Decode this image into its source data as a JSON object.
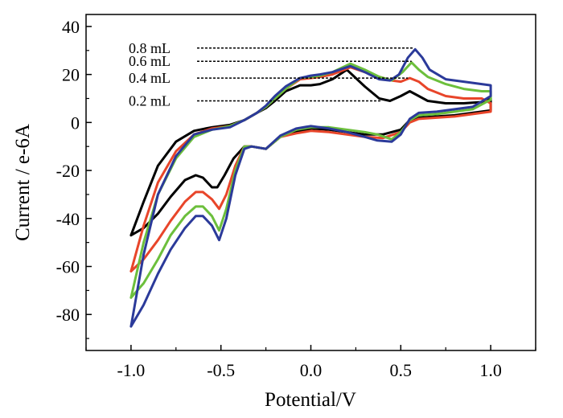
{
  "chart_data": {
    "type": "line",
    "xlabel": "Potential/V",
    "ylabel": "Current / e-6A",
    "xlim": [
      -1.25,
      1.25
    ],
    "ylim": [
      -95,
      45
    ],
    "xticks": [
      -1.0,
      -0.5,
      0.0,
      0.5,
      1.0
    ],
    "xtick_labels": [
      "-1.0",
      "-0.5",
      "0.0",
      "0.5",
      "1.0"
    ],
    "yticks": [
      -80,
      -60,
      -40,
      -20,
      0,
      20,
      40
    ],
    "ytick_labels": [
      "-80",
      "-60",
      "-40",
      "-20",
      "0",
      "20",
      "40"
    ],
    "grid": false,
    "legend": "none",
    "annotations": [
      {
        "text": "0.8 mL",
        "target_x": 0.57,
        "target_y": 31,
        "label_y": 31,
        "color": "#2b3a9a"
      },
      {
        "text": "0.6 mL",
        "target_x": 0.56,
        "target_y": 25.5,
        "label_y": 25.5,
        "color": "#6cbf3c"
      },
      {
        "text": "0.4 mL",
        "target_x": 0.54,
        "target_y": 18.5,
        "label_y": 18.5,
        "color": "#e8452a"
      },
      {
        "text": "0.2 mL",
        "target_x": 0.39,
        "target_y": 9,
        "label_y": 9,
        "color": "#000000"
      }
    ],
    "series": [
      {
        "color": "#000000",
        "x": [
          -1.0,
          -0.93,
          -0.85,
          -0.78,
          -0.7,
          -0.64,
          -0.6,
          -0.55,
          -0.52,
          -0.48,
          -0.43,
          -0.37,
          -0.33,
          -0.25,
          -0.17,
          -0.08,
          0.0,
          0.1,
          0.2,
          0.3,
          0.4,
          0.5,
          0.55,
          0.6,
          0.7,
          0.8,
          0.9,
          1.0,
          1.0,
          0.95,
          0.85,
          0.75,
          0.65,
          0.6,
          0.55,
          0.5,
          0.44,
          0.38,
          0.3,
          0.2,
          0.12,
          0.05,
          0.0,
          -0.06,
          -0.14,
          -0.2,
          -0.25,
          -0.3,
          -0.37,
          -0.45,
          -0.55,
          -0.65,
          -0.75,
          -0.85,
          -0.93,
          -1.0
        ],
        "y": [
          -47,
          -44,
          -38,
          -31,
          -24,
          -22,
          -23,
          -27,
          -27,
          -22,
          -15,
          -10,
          -10,
          -11,
          -6,
          -4,
          -2.5,
          -3,
          -4,
          -5,
          -5,
          -3,
          1,
          2,
          2.5,
          3,
          4,
          5,
          10,
          8.5,
          8,
          8,
          9,
          11,
          13,
          11,
          9,
          10,
          15,
          22,
          18,
          16,
          15.5,
          15.5,
          13,
          9,
          6,
          4,
          1,
          -1,
          -2,
          -3.5,
          -8,
          -18,
          -33,
          -47
        ]
      },
      {
        "color": "#e8452a",
        "x": [
          -1.0,
          -0.93,
          -0.85,
          -0.78,
          -0.7,
          -0.64,
          -0.6,
          -0.55,
          -0.51,
          -0.47,
          -0.42,
          -0.37,
          -0.33,
          -0.25,
          -0.17,
          -0.08,
          0.0,
          0.1,
          0.2,
          0.3,
          0.4,
          0.5,
          0.55,
          0.6,
          0.7,
          0.8,
          0.9,
          1.0,
          1.0,
          0.95,
          0.85,
          0.75,
          0.65,
          0.6,
          0.55,
          0.5,
          0.45,
          0.38,
          0.3,
          0.22,
          0.12,
          0.05,
          0.0,
          -0.06,
          -0.14,
          -0.2,
          -0.25,
          -0.3,
          -0.37,
          -0.45,
          -0.55,
          -0.65,
          -0.75,
          -0.85,
          -0.93,
          -1.0
        ],
        "y": [
          -62,
          -57,
          -49,
          -41,
          -33,
          -29,
          -29,
          -32,
          -36,
          -30,
          -18,
          -10,
          -10,
          -11,
          -6,
          -4.5,
          -3.5,
          -4,
          -5,
          -6,
          -6.5,
          -4,
          0,
          1.5,
          2,
          2.5,
          3.5,
          4.5,
          8,
          10,
          10,
          11,
          14,
          17,
          18.5,
          17,
          17.5,
          19,
          21,
          23,
          20,
          19,
          18.5,
          18,
          14,
          10,
          6.5,
          4,
          1,
          -1.5,
          -2.5,
          -5,
          -12,
          -25,
          -43,
          -62
        ]
      },
      {
        "color": "#6cbf3c",
        "x": [
          -1.0,
          -0.93,
          -0.85,
          -0.78,
          -0.7,
          -0.64,
          -0.6,
          -0.55,
          -0.51,
          -0.47,
          -0.42,
          -0.37,
          -0.33,
          -0.25,
          -0.17,
          -0.08,
          0.0,
          0.1,
          0.2,
          0.3,
          0.37,
          0.45,
          0.5,
          0.55,
          0.6,
          0.7,
          0.8,
          0.9,
          1.0,
          1.0,
          0.95,
          0.85,
          0.75,
          0.65,
          0.6,
          0.56,
          0.51,
          0.45,
          0.38,
          0.3,
          0.22,
          0.12,
          0.05,
          0.0,
          -0.06,
          -0.14,
          -0.2,
          -0.25,
          -0.3,
          -0.37,
          -0.45,
          -0.55,
          -0.65,
          -0.75,
          -0.85,
          -0.93,
          -1.0
        ],
        "y": [
          -73,
          -67,
          -57,
          -47,
          -39,
          -35,
          -35,
          -39,
          -45,
          -36,
          -20,
          -10,
          -10,
          -11,
          -6,
          -3,
          -2,
          -2,
          -3,
          -4,
          -5,
          -7,
          -4,
          1,
          3,
          3.5,
          4.5,
          5.5,
          9.5,
          13,
          13,
          14,
          16,
          19,
          22,
          25,
          21,
          17.5,
          19,
          22,
          24.5,
          21,
          19.5,
          19,
          18.5,
          14,
          10,
          6.5,
          4,
          1,
          -1.5,
          -3,
          -6,
          -15,
          -30,
          -50,
          -73
        ]
      },
      {
        "color": "#2b3a9a",
        "x": [
          -1.0,
          -0.93,
          -0.85,
          -0.78,
          -0.7,
          -0.64,
          -0.6,
          -0.55,
          -0.51,
          -0.47,
          -0.42,
          -0.37,
          -0.33,
          -0.25,
          -0.17,
          -0.08,
          0.0,
          0.1,
          0.2,
          0.3,
          0.37,
          0.45,
          0.5,
          0.55,
          0.6,
          0.7,
          0.8,
          0.9,
          1.0,
          1.0,
          0.95,
          0.85,
          0.75,
          0.66,
          0.62,
          0.58,
          0.54,
          0.49,
          0.44,
          0.38,
          0.3,
          0.22,
          0.12,
          0.05,
          0.0,
          -0.06,
          -0.14,
          -0.2,
          -0.25,
          -0.3,
          -0.37,
          -0.45,
          -0.55,
          -0.65,
          -0.75,
          -0.85,
          -0.93,
          -1.0
        ],
        "y": [
          -85,
          -76,
          -63,
          -53,
          -44,
          -39,
          -39,
          -43,
          -49,
          -40,
          -22,
          -11,
          -10,
          -11,
          -5.5,
          -2.5,
          -1.5,
          -2.5,
          -4,
          -6,
          -7.5,
          -8,
          -5,
          1.5,
          4,
          4.5,
          5.5,
          6.5,
          11,
          15.5,
          16,
          17,
          18,
          22,
          27,
          30.5,
          27,
          20,
          17.5,
          18,
          21,
          23.5,
          21,
          20,
          19.5,
          18.5,
          15,
          11,
          7,
          4,
          1,
          -2,
          -3,
          -5,
          -14,
          -30,
          -55,
          -85
        ]
      }
    ]
  }
}
